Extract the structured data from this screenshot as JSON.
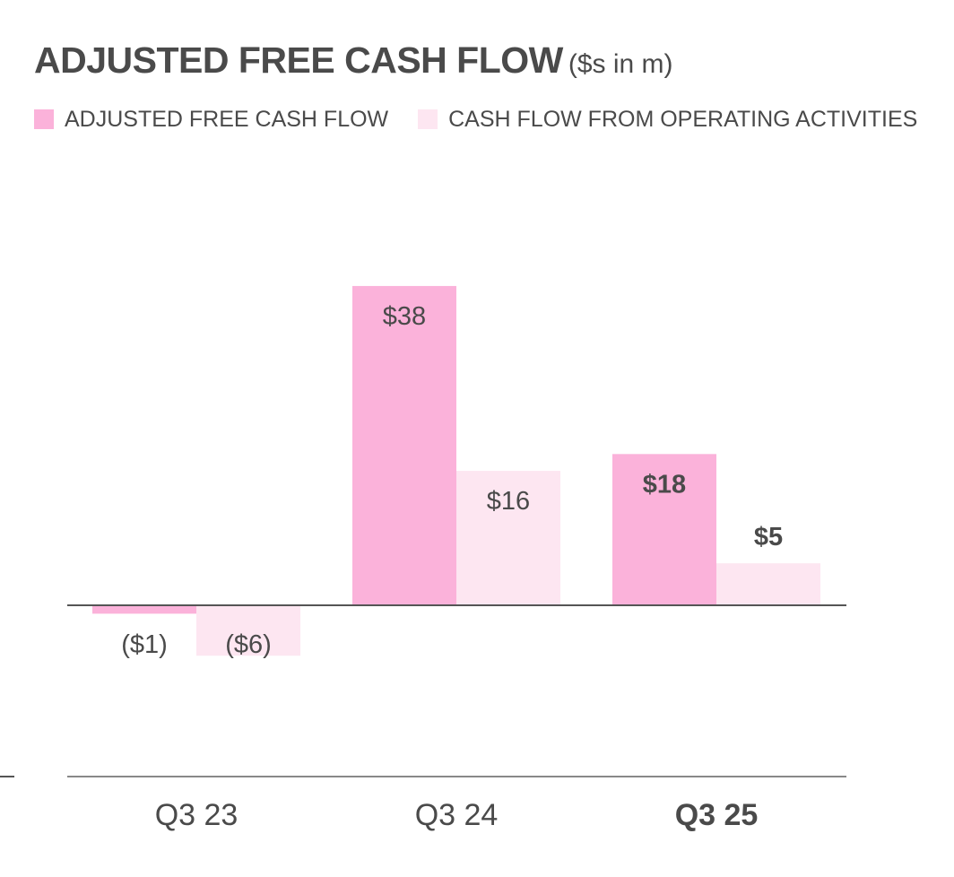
{
  "chart_data": {
    "type": "bar",
    "title": "ADJUSTED FREE CASH FLOW",
    "subtitle": "($s in m)",
    "categories": [
      "Q3 23",
      "Q3 24",
      "Q3 25"
    ],
    "highlight_category": "Q3 25",
    "series": [
      {
        "name": "ADJUSTED FREE CASH FLOW",
        "color": "#fbb2da",
        "values": [
          -1,
          38,
          18
        ],
        "labels": [
          "($1)",
          "$38",
          "$18"
        ]
      },
      {
        "name": "CASH FLOW FROM OPERATING ACTIVITIES",
        "color": "#fde6f1",
        "values": [
          -6,
          16,
          5
        ],
        "labels": [
          "($6)",
          "$16",
          "$5"
        ]
      }
    ],
    "xlabel": "",
    "ylabel": "",
    "ylim": [
      -20,
      50
    ],
    "grid": false,
    "legend": "top-left"
  }
}
